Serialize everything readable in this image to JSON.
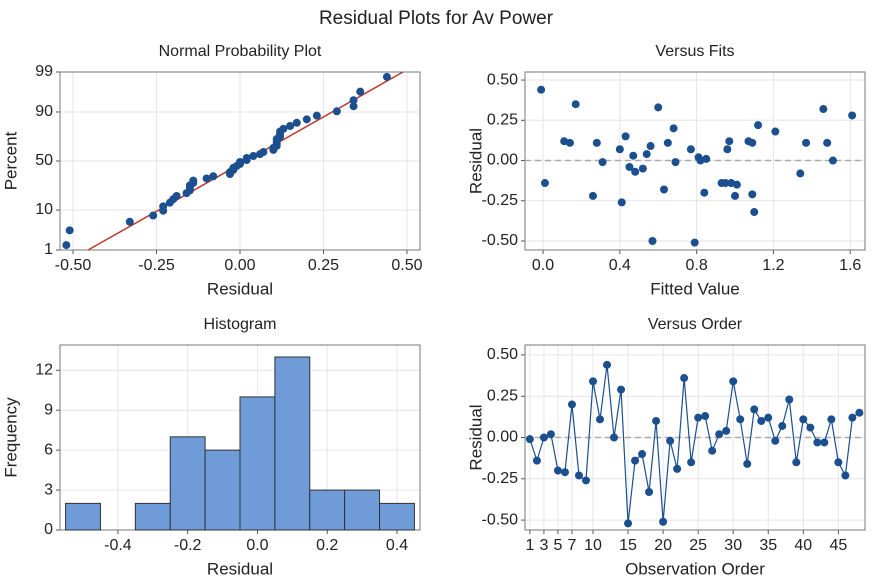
{
  "title": "Residual Plots for Av Power",
  "chart_data": [
    {
      "type": "scatter",
      "title": "Normal Probability Plot",
      "xlabel": "Residual",
      "ylabel": "Percent",
      "yscale": "probit",
      "grid": true,
      "color": "#1b4f8f",
      "xlim": [
        -0.539,
        0.539
      ],
      "xticks": [
        {
          "value": -0.5,
          "label": "-0.50"
        },
        {
          "value": -0.25,
          "label": "-0.25"
        },
        {
          "value": 0,
          "label": "0.00"
        },
        {
          "value": 0.25,
          "label": "0.25"
        },
        {
          "value": 0.5,
          "label": "0.50"
        }
      ],
      "ylim": [
        1,
        99
      ],
      "yticks": [
        1,
        10,
        50,
        90,
        99
      ],
      "x": [
        -0.52,
        -0.51,
        -0.33,
        -0.26,
        -0.23,
        -0.23,
        -0.21,
        -0.2,
        -0.19,
        -0.16,
        -0.15,
        -0.15,
        -0.15,
        -0.14,
        -0.14,
        -0.1,
        -0.08,
        -0.03,
        -0.03,
        -0.02,
        -0.02,
        -0.01,
        0.0,
        0.0,
        0.02,
        0.02,
        0.04,
        0.06,
        0.07,
        0.1,
        0.1,
        0.11,
        0.11,
        0.11,
        0.11,
        0.12,
        0.12,
        0.12,
        0.13,
        0.15,
        0.17,
        0.2,
        0.23,
        0.29,
        0.34,
        0.34,
        0.36,
        0.44
      ],
      "values": [
        1.4,
        3.5,
        5.6,
        7.7,
        9.7,
        11.8,
        13.8,
        15.9,
        18.0,
        20.0,
        22.1,
        24.2,
        26.2,
        28.3,
        30.4,
        32.4,
        34.5,
        36.6,
        38.6,
        40.7,
        42.8,
        44.8,
        46.9,
        49.0,
        51.0,
        53.1,
        55.2,
        57.2,
        59.3,
        61.4,
        63.4,
        65.5,
        67.6,
        69.6,
        71.7,
        73.8,
        75.8,
        77.9,
        80.0,
        82.0,
        84.1,
        86.2,
        88.2,
        90.3,
        92.4,
        94.4,
        96.5,
        98.6
      ],
      "fit_line": {
        "x": [
          -0.455,
          0.488
        ],
        "y": [
          1,
          99
        ],
        "color": "#c0392b"
      }
    },
    {
      "type": "scatter",
      "title": "Versus Fits",
      "xlabel": "Fitted Value",
      "ylabel": "Residual",
      "grid": true,
      "color": "#1b4f8f",
      "reference_line": 0,
      "xlim": [
        -0.094,
        1.677
      ],
      "xticks": [
        {
          "value": 0,
          "label": "0.0"
        },
        0.4,
        0.8,
        1.2,
        1.6
      ],
      "ylim": [
        -0.556,
        0.55
      ],
      "yticks": [
        {
          "value": -0.5,
          "label": "-0.50"
        },
        {
          "value": -0.25,
          "label": "-0.25"
        },
        {
          "value": 0,
          "label": "0.00"
        },
        {
          "value": 0.25,
          "label": "0.25"
        },
        {
          "value": 0.5,
          "label": "0.50"
        }
      ],
      "x": [
        -0.01,
        0.01,
        0.11,
        0.14,
        0.17,
        0.26,
        0.28,
        0.31,
        0.4,
        0.41,
        0.43,
        0.45,
        0.47,
        0.48,
        0.52,
        0.54,
        0.56,
        0.57,
        0.6,
        0.63,
        0.65,
        0.68,
        0.69,
        0.77,
        0.79,
        0.81,
        0.82,
        0.84,
        0.85,
        0.93,
        0.95,
        0.96,
        0.97,
        0.98,
        1.0,
        1.01,
        1.07,
        1.09,
        1.09,
        1.1,
        1.12,
        1.21,
        1.34,
        1.37,
        1.46,
        1.48,
        1.51,
        1.61
      ],
      "values": [
        0.44,
        -0.14,
        0.12,
        0.11,
        0.35,
        -0.22,
        0.11,
        -0.01,
        0.07,
        -0.26,
        0.15,
        -0.04,
        0.03,
        -0.07,
        -0.05,
        0.04,
        0.09,
        -0.5,
        0.33,
        -0.18,
        0.11,
        0.2,
        -0.01,
        0.07,
        -0.51,
        0.02,
        0.0,
        -0.2,
        0.01,
        -0.14,
        -0.14,
        0.07,
        0.12,
        -0.14,
        -0.22,
        -0.15,
        0.12,
        0.11,
        -0.21,
        -0.32,
        0.22,
        0.18,
        -0.08,
        0.11,
        0.32,
        0.11,
        0.0,
        0.28
      ]
    },
    {
      "type": "histogram",
      "title": "Histogram",
      "xlabel": "Residual",
      "ylabel": "Frequency",
      "grid": true,
      "color": "#6f9bd9",
      "xlim": [
        -0.566,
        0.466
      ],
      "xticks": [
        -0.4,
        -0.2,
        {
          "value": 0,
          "label": "0.0"
        },
        0.2,
        0.4
      ],
      "ylim": [
        0,
        13.9
      ],
      "yticks": [
        0,
        3,
        6,
        9,
        12
      ],
      "bins": [
        -0.55,
        -0.45,
        -0.35,
        -0.25,
        -0.15,
        -0.05,
        0.05,
        0.15,
        0.25,
        0.35,
        0.45
      ],
      "values": [
        2,
        0,
        2,
        7,
        6,
        10,
        13,
        3,
        3,
        2
      ]
    },
    {
      "type": "line",
      "title": "Versus Order",
      "xlabel": "Observation Order",
      "ylabel": "Residual",
      "grid": true,
      "color": "#1b4f8f",
      "reference_line": 0,
      "xlim": [
        0.3,
        48.8
      ],
      "xticks": [
        1,
        3,
        5,
        7,
        10,
        15,
        20,
        25,
        30,
        35,
        40,
        45
      ],
      "ylim": [
        -0.56,
        0.56
      ],
      "yticks": [
        {
          "value": -0.5,
          "label": "-0.50"
        },
        {
          "value": -0.25,
          "label": "-0.25"
        },
        {
          "value": 0,
          "label": "0.00"
        },
        {
          "value": 0.25,
          "label": "0.25"
        },
        {
          "value": 0.5,
          "label": "0.50"
        }
      ],
      "x": [
        1,
        2,
        3,
        4,
        5,
        6,
        7,
        8,
        9,
        10,
        11,
        12,
        13,
        14,
        15,
        16,
        17,
        18,
        19,
        20,
        21,
        22,
        23,
        24,
        25,
        26,
        27,
        28,
        29,
        30,
        31,
        32,
        33,
        34,
        35,
        36,
        37,
        38,
        39,
        40,
        41,
        42,
        43,
        44,
        45,
        46,
        47,
        48
      ],
      "values": [
        -0.01,
        -0.14,
        0.0,
        0.02,
        -0.2,
        -0.21,
        0.2,
        -0.23,
        -0.26,
        0.34,
        0.11,
        0.44,
        0.0,
        0.29,
        -0.52,
        -0.14,
        -0.1,
        -0.33,
        0.1,
        -0.51,
        -0.02,
        -0.19,
        0.36,
        -0.15,
        0.12,
        0.13,
        -0.08,
        0.02,
        0.04,
        0.34,
        0.11,
        -0.16,
        0.17,
        0.1,
        0.12,
        -0.02,
        0.07,
        0.23,
        -0.15,
        0.11,
        0.06,
        -0.03,
        -0.03,
        0.11,
        -0.15,
        -0.23,
        0.12,
        0.15
      ]
    }
  ]
}
